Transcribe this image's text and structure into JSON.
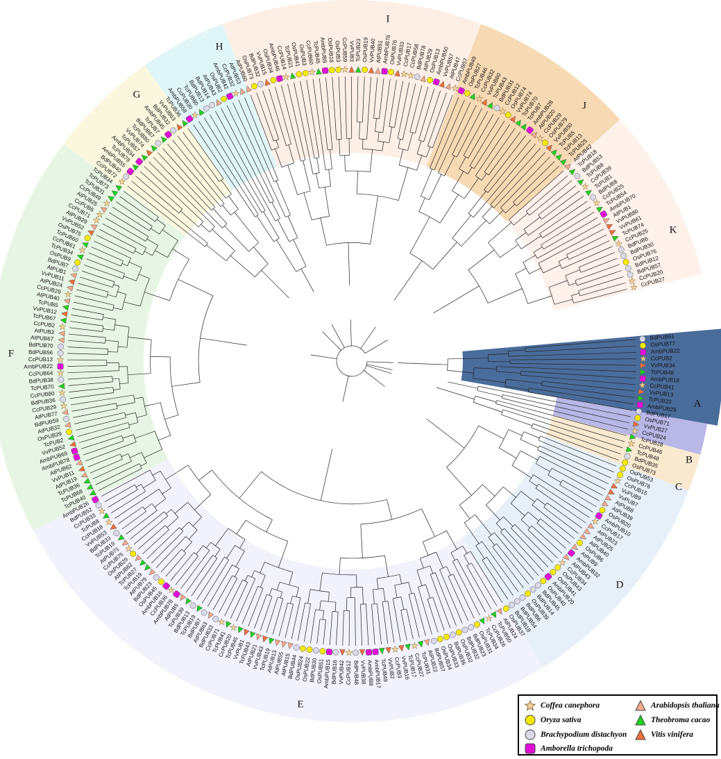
{
  "clades": [
    {
      "label": "A",
      "color": "#4a6c9b"
    },
    {
      "label": "B",
      "color": "#b9b7e6"
    },
    {
      "label": "C",
      "color": "#f8e9cf"
    },
    {
      "label": "D",
      "color": "#e7f0f9"
    },
    {
      "label": "E",
      "color": "#f1f2fb"
    },
    {
      "label": "F",
      "color": "#e7f6e4"
    },
    {
      "label": "G",
      "color": "#fbf7de"
    },
    {
      "label": "H",
      "color": "#e0f5f7"
    },
    {
      "label": "I",
      "color": "#fdefe6"
    },
    {
      "label": "J",
      "color": "#f7d9b3"
    },
    {
      "label": "K",
      "color": "#fdf1ea"
    }
  ],
  "visible_leaves": {
    "clade_A": [
      "BdPUB61",
      "OsPUB77",
      "AmbPUB22",
      "CcPUB2",
      "VvPUB34",
      "TcPUB48",
      "AmbPUB18",
      "CcPUB41",
      "VvPUB13",
      "TcPUB33",
      "AmbPUB29",
      "BdPUB17",
      "OsPUB71",
      "VvPUB27",
      "CcPUB24"
    ],
    "clade_B": [
      "TcPUB28",
      "CcPUB46",
      "TcPUB48",
      "BdPUB35",
      "OsPUB73",
      "OsPUB53",
      "OsPUB76"
    ],
    "clade_K": [
      "CcPUB15",
      "VvPUB9",
      "VvPUB7",
      "AtPUB8",
      "AtPUB39",
      "OsPUB20",
      "AmbPUB10",
      "CcPUB17",
      "AtPUB23",
      "AtPUB25",
      "AtPUB40",
      "OsPUB6",
      "AtPUB9"
    ],
    "clade_F": [
      "AmbPUB32",
      "AtPUB43",
      "CcPUB34",
      "OsPUB43",
      "OsPUB41",
      "AmbPUB20",
      "OsPUB40",
      "BdPUB45",
      "BdPUB14",
      "OsPUB39",
      "BdPUB6",
      "BdPUB54",
      "BdPUB18",
      "OsPUB37",
      "AtPUB24",
      "TcPUB50",
      "CcPUB26",
      "TcPUB34",
      "OsPUB31",
      "BdPUB23",
      "BdPUB32",
      "OsPUB32",
      "BdPUB36",
      "OsPUB33",
      "OsPUB34",
      "BdPUB57",
      "AtPUB22",
      "TcPUB31",
      "CcPUB27",
      "TcPUB17",
      "VvPUB16",
      "CcPUB3",
      "VvPUB2",
      "TcPUB49",
      "AmbPUB17",
      "AmbPUB8",
      "VvPUB38",
      "BdPUB48"
    ],
    "clade_E": [
      "CcPUB12",
      "VvPUB42",
      "BdPUB16",
      "AmbPUB15",
      "OsPUB51",
      "BdPUB30",
      "OsPUB22",
      "OsPUB24",
      "BdPUB44",
      "AtPUB15",
      "AtPUB55",
      "AtPUB13",
      "TcPUB19",
      "VvPUB43",
      "AtPUB21",
      "TcPUB43",
      "VvPUB1"
    ]
  },
  "legend": [
    {
      "name": "Coffea canephora",
      "symbol": "star",
      "color": "#f6d7a1"
    },
    {
      "name": "Arabidopsis thaliana",
      "symbol": "triangle",
      "color": "#f4a98b"
    },
    {
      "name": "Oryza sativa",
      "symbol": "circle",
      "color": "#f7ea00"
    },
    {
      "name": "Theobroma cacao",
      "symbol": "triangle",
      "color": "#1fd21f"
    },
    {
      "name": "Brachypodium distachyon",
      "symbol": "circle",
      "color": "#d9d9e8"
    },
    {
      "name": "Vitis vinifera",
      "symbol": "triangle",
      "color": "#f06f3b"
    },
    {
      "name": "Amborella trichopoda",
      "symbol": "rounded-square",
      "color": "#e10fd8"
    }
  ]
}
